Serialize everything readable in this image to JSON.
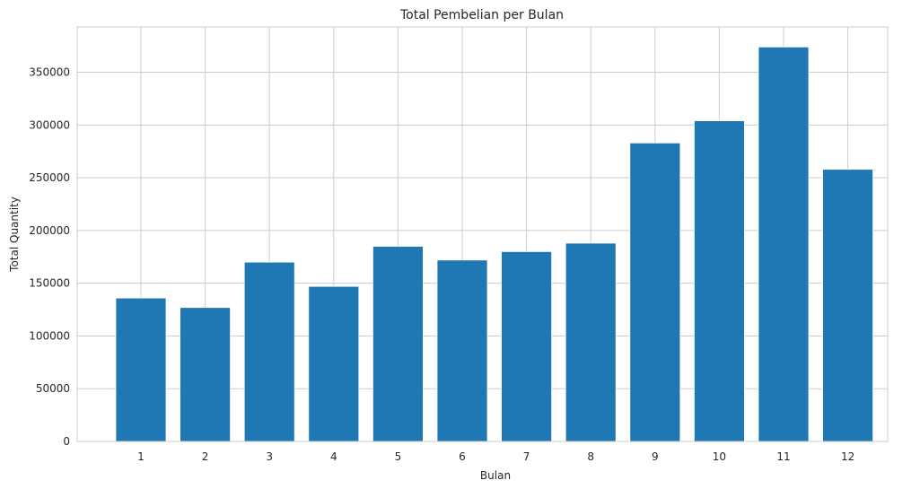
{
  "chart_data": {
    "type": "bar",
    "title": "Total Pembelian per Bulan",
    "xlabel": "Bulan",
    "ylabel": "Total Quantity",
    "categories": [
      "1",
      "2",
      "3",
      "4",
      "5",
      "6",
      "7",
      "8",
      "9",
      "10",
      "11",
      "12"
    ],
    "values": [
      136000,
      127000,
      170000,
      147000,
      185000,
      172000,
      180000,
      188000,
      283000,
      304000,
      374000,
      258000
    ],
    "ylim": [
      0,
      393000
    ],
    "yticks": [
      0,
      50000,
      100000,
      150000,
      200000,
      250000,
      300000,
      350000
    ],
    "ytick_labels": [
      "0",
      "50000",
      "100000",
      "150000",
      "200000",
      "250000",
      "300000",
      "350000"
    ],
    "bar_color": "#1f77b4",
    "grid": true
  }
}
